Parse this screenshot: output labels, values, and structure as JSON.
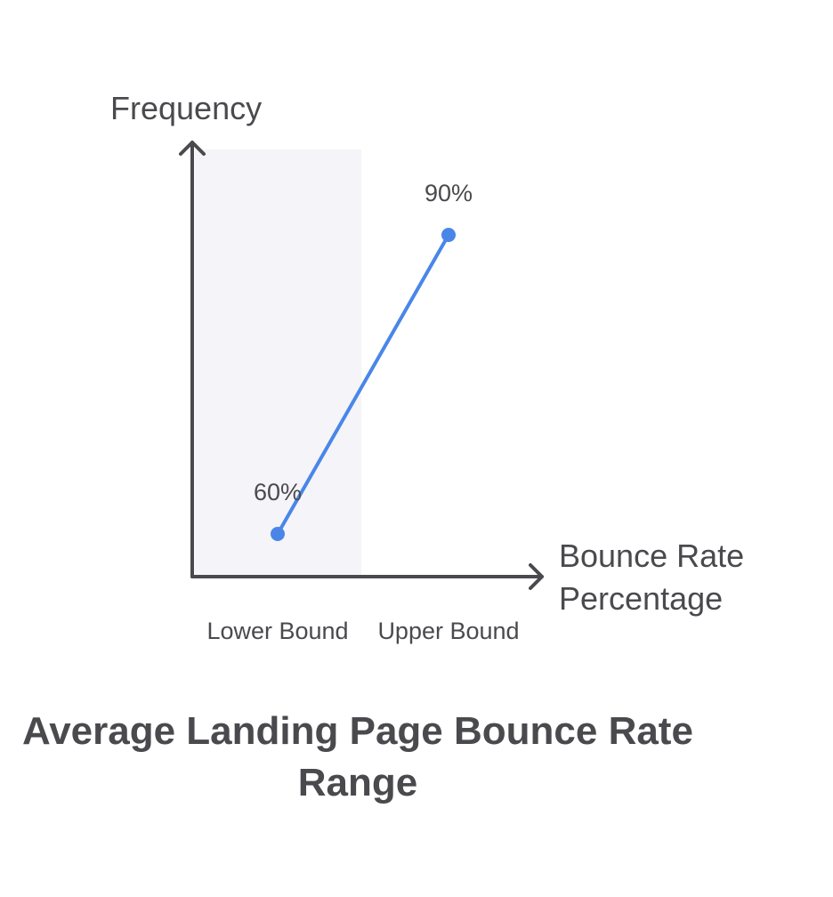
{
  "chart_data": {
    "type": "line",
    "title": "Average Landing Page Bounce Rate Range",
    "ylabel": "Frequency",
    "xlabel_lines": [
      "Bounce Rate",
      "Percentage"
    ],
    "categories": [
      "Lower Bound",
      "Upper Bound"
    ],
    "series": [
      {
        "values": [
          60,
          90
        ],
        "labels": [
          "60%",
          "90%"
        ],
        "color": "#4a86e8"
      }
    ],
    "ylim": [
      50,
      100
    ],
    "grid": false,
    "highlight_category": "Lower Bound",
    "highlight_color": "#f5f4f8",
    "axis_color": "#4a4a4e"
  }
}
